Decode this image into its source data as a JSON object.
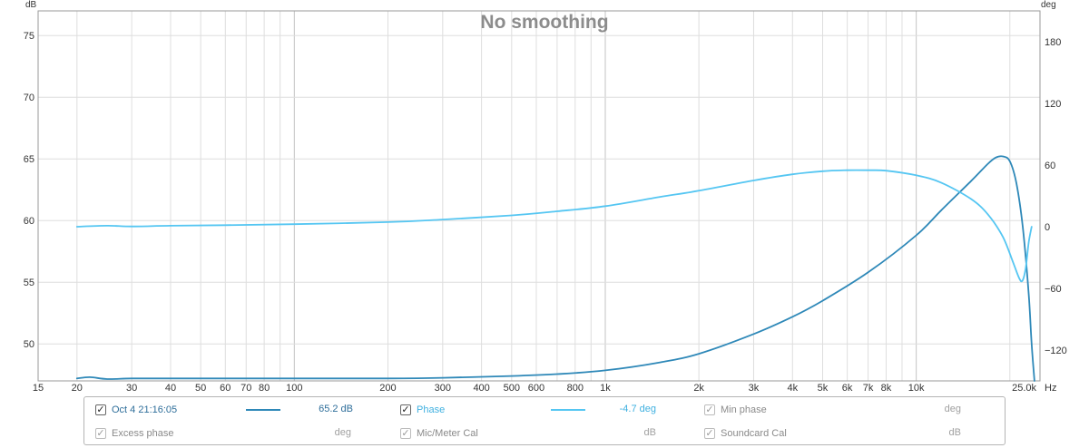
{
  "chart_data": {
    "type": "line",
    "title": "No smoothing",
    "y_left_unit": "dB",
    "y_right_unit": "deg",
    "x_unit": "Hz",
    "x_scale": "log",
    "xlim": [
      15,
      25000
    ],
    "ylim_left": [
      47,
      77
    ],
    "ylim_right": [
      -150,
      210
    ],
    "x_ticks": [
      {
        "v": 15,
        "label": "15"
      },
      {
        "v": 20,
        "label": "20"
      },
      {
        "v": 30,
        "label": "30"
      },
      {
        "v": 40,
        "label": "40"
      },
      {
        "v": 50,
        "label": "50"
      },
      {
        "v": 60,
        "label": "60"
      },
      {
        "v": 70,
        "label": "70"
      },
      {
        "v": 80,
        "label": "80"
      },
      {
        "v": 100,
        "label": "100"
      },
      {
        "v": 200,
        "label": "200"
      },
      {
        "v": 300,
        "label": "300"
      },
      {
        "v": 400,
        "label": "400"
      },
      {
        "v": 500,
        "label": "500"
      },
      {
        "v": 600,
        "label": "600"
      },
      {
        "v": 800,
        "label": "800"
      },
      {
        "v": 1000,
        "label": "1k"
      },
      {
        "v": 2000,
        "label": "2k"
      },
      {
        "v": 3000,
        "label": "3k"
      },
      {
        "v": 4000,
        "label": "4k"
      },
      {
        "v": 5000,
        "label": "5k"
      },
      {
        "v": 6000,
        "label": "6k"
      },
      {
        "v": 7000,
        "label": "7k"
      },
      {
        "v": 8000,
        "label": "8k"
      },
      {
        "v": 10000,
        "label": "10k"
      },
      {
        "v": 25000,
        "label": "25.0k"
      }
    ],
    "y_left_ticks": [
      {
        "v": 75,
        "label": "75"
      },
      {
        "v": 70,
        "label": "70"
      },
      {
        "v": 65,
        "label": "65"
      },
      {
        "v": 60,
        "label": "60"
      },
      {
        "v": 55,
        "label": "55"
      },
      {
        "v": 50,
        "label": "50"
      }
    ],
    "y_right_ticks": [
      {
        "v": 180,
        "label": "180"
      },
      {
        "v": 120,
        "label": "120"
      },
      {
        "v": 60,
        "label": "60"
      },
      {
        "v": 0,
        "label": "0"
      },
      {
        "v": -60,
        "label": "−60"
      },
      {
        "v": -120,
        "label": "−120"
      }
    ],
    "grid": true,
    "series": [
      {
        "name": "Oct 4 21:16:05",
        "axis": "left",
        "color": "#2e88b8",
        "x": [
          20,
          22,
          25,
          30,
          40,
          60,
          100,
          200,
          300,
          500,
          700,
          1000,
          1500,
          2000,
          3000,
          4000,
          5000,
          7000,
          10000,
          12000,
          15000,
          17000,
          18000,
          19000,
          20000,
          21000,
          22000,
          23000,
          23500,
          24000
        ],
        "values": [
          47.2,
          47.3,
          47.15,
          47.2,
          47.2,
          47.2,
          47.2,
          47.2,
          47.25,
          47.4,
          47.55,
          47.85,
          48.5,
          49.2,
          50.8,
          52.2,
          53.5,
          55.8,
          58.8,
          60.8,
          63.2,
          64.6,
          65.1,
          65.2,
          64.8,
          63.0,
          59.5,
          54.0,
          50.0,
          47.0
        ]
      },
      {
        "name": "Phase",
        "axis": "right",
        "color": "#55c6f2",
        "x": [
          20,
          25,
          30,
          40,
          60,
          100,
          200,
          300,
          500,
          700,
          1000,
          1500,
          2000,
          3000,
          4000,
          5000,
          6000,
          7000,
          8000,
          10000,
          12000,
          15000,
          17000,
          19000,
          20500,
          21500,
          22000,
          22500,
          23000,
          23500
        ],
        "values": [
          0,
          1,
          0.3,
          1,
          1.5,
          2.5,
          4.5,
          7,
          11,
          15,
          20,
          29,
          35,
          45,
          51,
          54,
          55,
          55,
          54.5,
          50,
          43,
          27,
          12,
          -10,
          -35,
          -51,
          -52,
          -40,
          -15,
          0
        ]
      }
    ],
    "cursor_readouts": {
      "measurement": "65.2 dB",
      "phase": "-4.7 deg",
      "min_phase": "deg",
      "excess_phase": "deg",
      "mic_meter_cal": "dB",
      "soundcard_cal": "dB"
    }
  },
  "legend": {
    "row1": [
      {
        "label": "Oct 4 21:16:05",
        "checked": true,
        "enabled": true,
        "value": "65.2 dB",
        "color": "#2e88b8"
      },
      {
        "label": "Phase",
        "checked": true,
        "enabled": true,
        "value": "-4.7 deg",
        "color": "#55c6f2"
      },
      {
        "label": "Min phase",
        "checked": true,
        "enabled": false,
        "value": "deg"
      }
    ],
    "row2": [
      {
        "label": "Excess phase",
        "checked": true,
        "enabled": false,
        "value": "deg"
      },
      {
        "label": "Mic/Meter Cal",
        "checked": true,
        "enabled": false,
        "value": "dB"
      },
      {
        "label": "Soundcard Cal",
        "checked": true,
        "enabled": false,
        "value": "dB"
      }
    ],
    "check_glyph": "✓"
  }
}
